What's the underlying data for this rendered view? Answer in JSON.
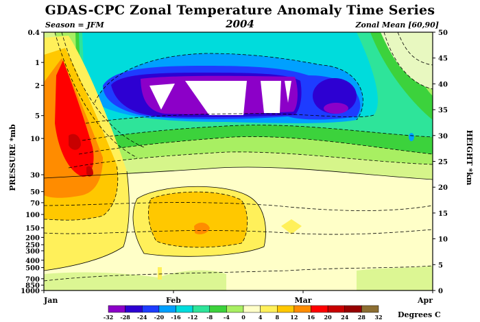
{
  "header": {
    "title": "GDAS-CPC Zonal Temperature Anomaly Time Series",
    "subtitle": "2004",
    "season": "Season = JFM",
    "zonal_mean": "Zonal Mean [60,90]"
  },
  "chart_data": {
    "type": "heatmap",
    "title": "GDAS-CPC Zonal Temperature Anomaly Time Series",
    "subtitle": "2004",
    "ylabel": "PRESSURE *mb",
    "y2label": "HEIGHT *km",
    "x_ticks": [
      "Jan",
      "Feb",
      "Mar",
      "Apr"
    ],
    "pressure_ticks": [
      "0.4",
      "1",
      "2",
      "5",
      "10",
      "30",
      "50",
      "70",
      "100",
      "150",
      "200",
      "250",
      "300",
      "400",
      "500",
      "700",
      "850",
      "1000"
    ],
    "pressure_values": [
      0.4,
      1,
      2,
      5,
      10,
      30,
      50,
      70,
      100,
      150,
      200,
      250,
      300,
      400,
      500,
      700,
      850,
      1000
    ],
    "y_scale": "log",
    "height_ticks": [
      "0",
      "5",
      "10",
      "15",
      "20",
      "25",
      "30",
      "35",
      "40",
      "45",
      "50"
    ],
    "height_range_km": [
      0,
      50
    ],
    "colorbar": {
      "levels": [
        -32,
        -28,
        -24,
        -20,
        -16,
        -12,
        -8,
        -4,
        0,
        4,
        8,
        12,
        16,
        20,
        24,
        28,
        32
      ],
      "level_labels": [
        "-32",
        "-28",
        "-24",
        "-20",
        "-16",
        "-12",
        "-8",
        "-4",
        "0",
        "4",
        "8",
        "12",
        "16",
        "20",
        "24",
        "28",
        "32"
      ],
      "colors": [
        "#8c00c8",
        "#2d00d2",
        "#1e3cff",
        "#00a0ff",
        "#00dcdc",
        "#2ee49a",
        "#3cd23c",
        "#a8ef62",
        "#ffffc8",
        "#fff05a",
        "#ffc800",
        "#ff8c00",
        "#ff0000",
        "#c80000",
        "#960000",
        "#8c6e32"
      ],
      "units": "Degrees C"
    },
    "anomaly_regions": [
      {
        "feature": "strong cold anomaly, upper stratosphere (about 1.5-4 mb)",
        "period": "late Jan - early Mar",
        "value_range": [
          -32,
          -24
        ]
      },
      {
        "feature": "coldest core (below -32)",
        "period": "early - mid Feb",
        "value_range": [
          -40,
          -32
        ]
      },
      {
        "feature": "secondary cold core near 5 mb",
        "period": "mid Mar",
        "value_range": [
          -28,
          -24
        ]
      },
      {
        "feature": "warm anomaly maximum near 10 mb",
        "period": "early - mid Jan",
        "value_range": [
          16,
          24
        ]
      },
      {
        "feature": "lower stratospheric warm anomaly near 150 mb",
        "period": "early Feb",
        "value_range": [
          8,
          16
        ]
      }
    ]
  }
}
